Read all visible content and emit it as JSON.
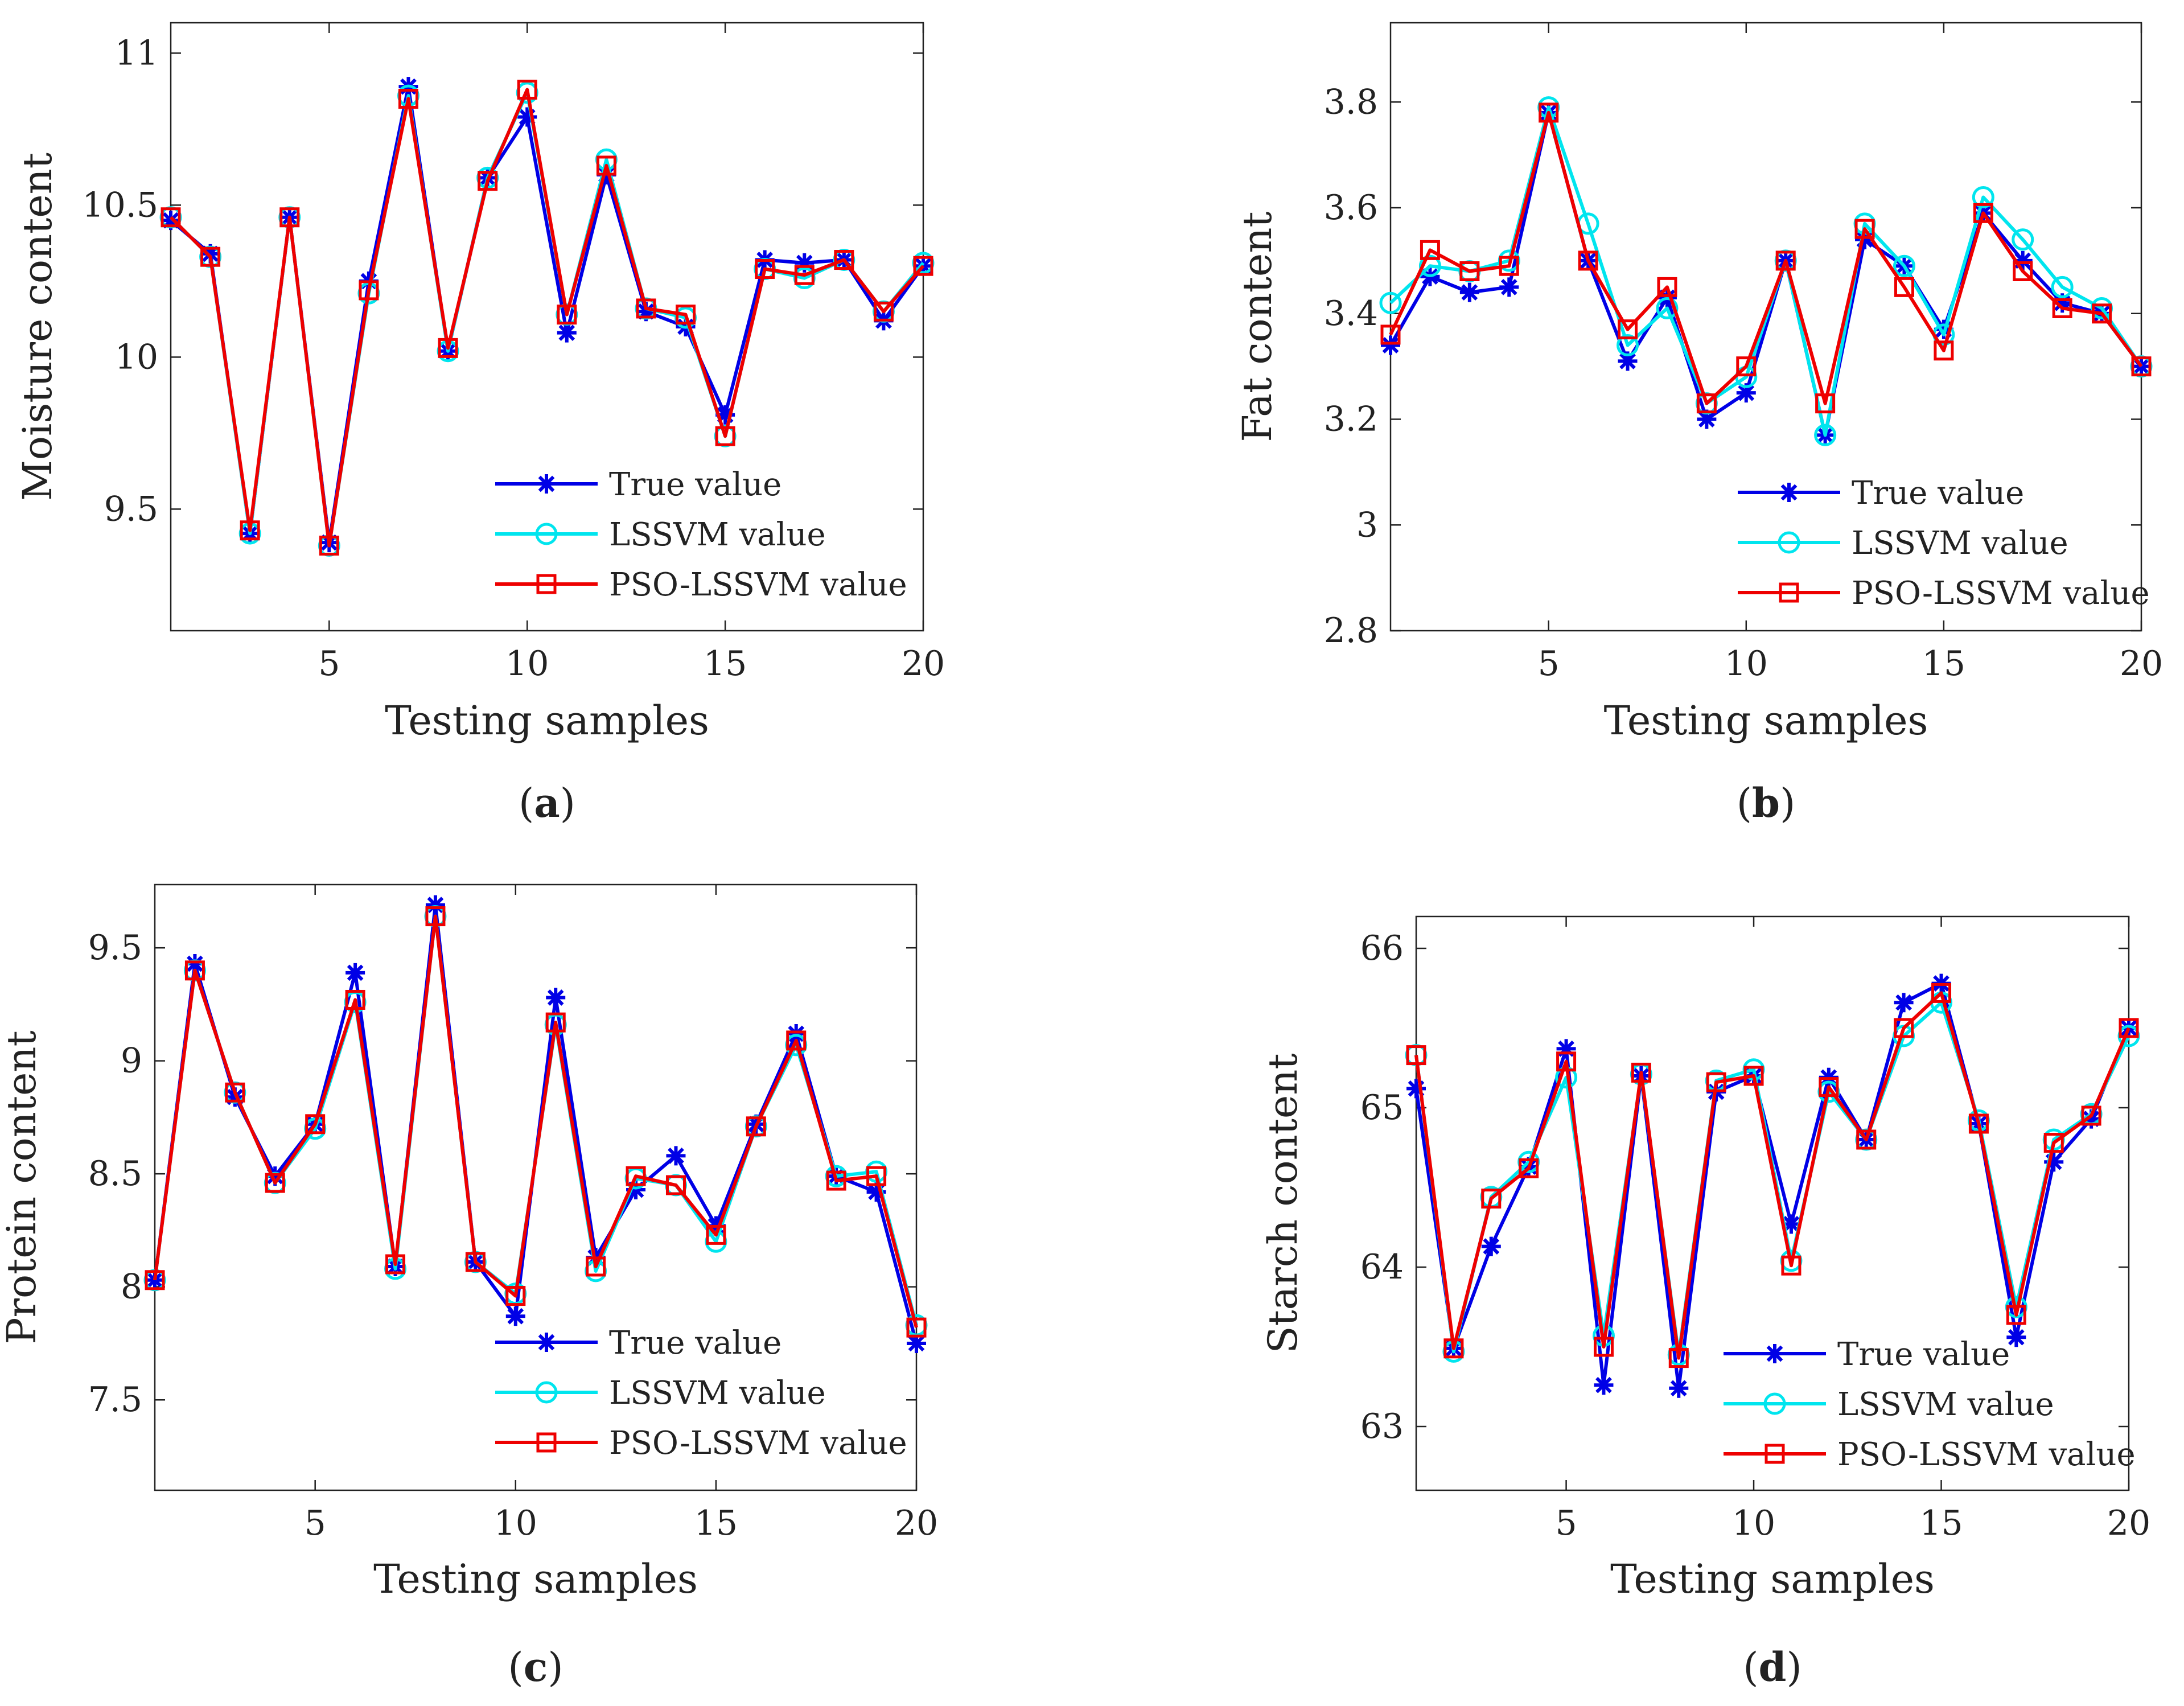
{
  "figure": {
    "series_styles": [
      {
        "name": "True value",
        "color": "#0000e6",
        "marker": "asterisk"
      },
      {
        "name": "LSSVM value",
        "color": "#00e5ee",
        "marker": "circle"
      },
      {
        "name": "PSO-LSSVM value",
        "color": "#ee0000",
        "marker": "square"
      }
    ]
  },
  "chart_data": [
    {
      "id": "a",
      "type": "line",
      "caption": "a",
      "xlabel": "Testing samples",
      "ylabel": "Moisture content",
      "xlim": [
        1,
        20
      ],
      "ylim": [
        9.1,
        11.1
      ],
      "xticks": [
        5,
        10,
        15,
        20
      ],
      "yticks": [
        9.5,
        10,
        10.5,
        11
      ],
      "ytick_labels": [
        "9.5",
        "10",
        "10.5",
        "11"
      ],
      "x": [
        1,
        2,
        3,
        4,
        5,
        6,
        7,
        8,
        9,
        10,
        11,
        12,
        13,
        14,
        15,
        16,
        17,
        18,
        19,
        20
      ],
      "series": [
        {
          "name": "True value",
          "values": [
            10.45,
            10.34,
            9.42,
            10.46,
            9.39,
            10.25,
            10.89,
            10.02,
            10.59,
            10.79,
            10.08,
            10.6,
            10.15,
            10.1,
            9.81,
            10.32,
            10.31,
            10.32,
            10.12,
            10.3
          ]
        },
        {
          "name": "LSSVM value",
          "values": [
            10.46,
            10.33,
            9.42,
            10.46,
            9.38,
            10.21,
            10.86,
            10.02,
            10.59,
            10.87,
            10.14,
            10.65,
            10.16,
            10.13,
            9.74,
            10.29,
            10.26,
            10.32,
            10.15,
            10.31
          ]
        },
        {
          "name": "PSO-LSSVM value",
          "values": [
            10.46,
            10.33,
            9.43,
            10.46,
            9.38,
            10.22,
            10.85,
            10.03,
            10.58,
            10.88,
            10.14,
            10.63,
            10.16,
            10.14,
            9.74,
            10.29,
            10.27,
            10.32,
            10.15,
            10.3
          ]
        }
      ],
      "legend": [
        "True value",
        "LSSVM value",
        "PSO-LSSVM value"
      ],
      "legend_position": "bottom-right"
    },
    {
      "id": "b",
      "type": "line",
      "caption": "b",
      "xlabel": "Testing samples",
      "ylabel": "Fat content",
      "xlim": [
        1,
        20
      ],
      "ylim": [
        2.8,
        3.95
      ],
      "xticks": [
        5,
        10,
        15,
        20
      ],
      "yticks": [
        2.8,
        3.0,
        3.2,
        3.4,
        3.6,
        3.8
      ],
      "ytick_labels": [
        "2.8",
        "3",
        "3.2",
        "3.4",
        "3.6",
        "3.8"
      ],
      "x": [
        1,
        2,
        3,
        4,
        5,
        6,
        7,
        8,
        9,
        10,
        11,
        12,
        13,
        14,
        15,
        16,
        17,
        18,
        19,
        20
      ],
      "series": [
        {
          "name": "True value",
          "values": [
            3.34,
            3.47,
            3.44,
            3.45,
            3.78,
            3.5,
            3.31,
            3.43,
            3.2,
            3.25,
            3.5,
            3.17,
            3.54,
            3.49,
            3.37,
            3.59,
            3.5,
            3.42,
            3.4,
            3.3
          ]
        },
        {
          "name": "LSSVM value",
          "values": [
            3.42,
            3.49,
            3.48,
            3.5,
            3.79,
            3.57,
            3.34,
            3.41,
            3.23,
            3.28,
            3.5,
            3.17,
            3.57,
            3.49,
            3.36,
            3.62,
            3.54,
            3.45,
            3.41,
            3.3
          ]
        },
        {
          "name": "PSO-LSSVM value",
          "values": [
            3.36,
            3.52,
            3.48,
            3.49,
            3.78,
            3.5,
            3.37,
            3.45,
            3.23,
            3.3,
            3.5,
            3.23,
            3.56,
            3.45,
            3.33,
            3.59,
            3.48,
            3.41,
            3.4,
            3.3
          ]
        }
      ],
      "legend": [
        "True value",
        "LSSVM value",
        "PSO-LSSVM value"
      ],
      "legend_position": "bottom-right"
    },
    {
      "id": "c",
      "type": "line",
      "caption": "c",
      "xlabel": "Testing samples",
      "ylabel": "Protein content",
      "xlim": [
        1,
        20
      ],
      "ylim": [
        7.1,
        9.78
      ],
      "xticks": [
        5,
        10,
        15,
        20
      ],
      "yticks": [
        7.5,
        8.0,
        8.5,
        9.0,
        9.5
      ],
      "ytick_labels": [
        "7.5",
        "8",
        "8.5",
        "9",
        "9.5"
      ],
      "x": [
        1,
        2,
        3,
        4,
        5,
        6,
        7,
        8,
        9,
        10,
        11,
        12,
        13,
        14,
        15,
        16,
        17,
        18,
        19,
        20
      ],
      "series": [
        {
          "name": "True value",
          "values": [
            8.03,
            9.43,
            8.84,
            8.49,
            8.72,
            9.39,
            8.09,
            9.69,
            8.11,
            7.87,
            9.28,
            8.13,
            8.43,
            8.58,
            8.27,
            8.72,
            9.12,
            8.49,
            8.42,
            7.75
          ]
        },
        {
          "name": "LSSVM value",
          "values": [
            8.03,
            9.4,
            8.86,
            8.46,
            8.7,
            9.26,
            8.08,
            9.64,
            8.11,
            7.97,
            9.16,
            8.07,
            8.48,
            8.45,
            8.2,
            8.71,
            9.07,
            8.49,
            8.51,
            7.83
          ]
        },
        {
          "name": "PSO-LSSVM value",
          "values": [
            8.03,
            9.4,
            8.86,
            8.46,
            8.72,
            9.27,
            8.1,
            9.64,
            8.11,
            7.96,
            9.17,
            8.09,
            8.49,
            8.45,
            8.23,
            8.71,
            9.09,
            8.47,
            8.49,
            7.82
          ]
        }
      ],
      "legend": [
        "True value",
        "LSSVM value",
        "PSO-LSSVM value"
      ],
      "legend_position": "bottom-right"
    },
    {
      "id": "d",
      "type": "line",
      "caption": "d",
      "xlabel": "Testing samples",
      "ylabel": "Starch content",
      "xlim": [
        1,
        20
      ],
      "ylim": [
        62.6,
        66.2
      ],
      "xticks": [
        5,
        10,
        15,
        20
      ],
      "yticks": [
        63,
        64,
        65,
        66
      ],
      "ytick_labels": [
        "63",
        "64",
        "65",
        "66"
      ],
      "x": [
        1,
        2,
        3,
        4,
        5,
        6,
        7,
        8,
        9,
        10,
        11,
        12,
        13,
        14,
        15,
        16,
        17,
        18,
        19,
        20
      ],
      "series": [
        {
          "name": "True value",
          "values": [
            65.12,
            63.49,
            64.13,
            64.63,
            65.37,
            63.26,
            65.2,
            63.24,
            65.1,
            65.2,
            64.27,
            65.19,
            64.8,
            65.66,
            65.78,
            64.9,
            63.56,
            64.66,
            64.93,
            65.5
          ]
        },
        {
          "name": "LSSVM value",
          "values": [
            65.33,
            63.47,
            64.44,
            64.66,
            65.19,
            63.57,
            65.21,
            63.45,
            65.17,
            65.24,
            64.04,
            65.1,
            64.8,
            65.45,
            65.66,
            64.92,
            63.75,
            64.8,
            64.96,
            65.45
          ]
        },
        {
          "name": "PSO-LSSVM value",
          "values": [
            65.33,
            63.49,
            64.43,
            64.62,
            65.29,
            63.5,
            65.22,
            63.43,
            65.16,
            65.2,
            64.01,
            65.13,
            64.8,
            65.5,
            65.72,
            64.9,
            63.7,
            64.78,
            64.95,
            65.5
          ]
        }
      ],
      "legend": [
        "True value",
        "LSSVM value",
        "PSO-LSSVM value"
      ],
      "legend_position": "bottom-right"
    }
  ]
}
